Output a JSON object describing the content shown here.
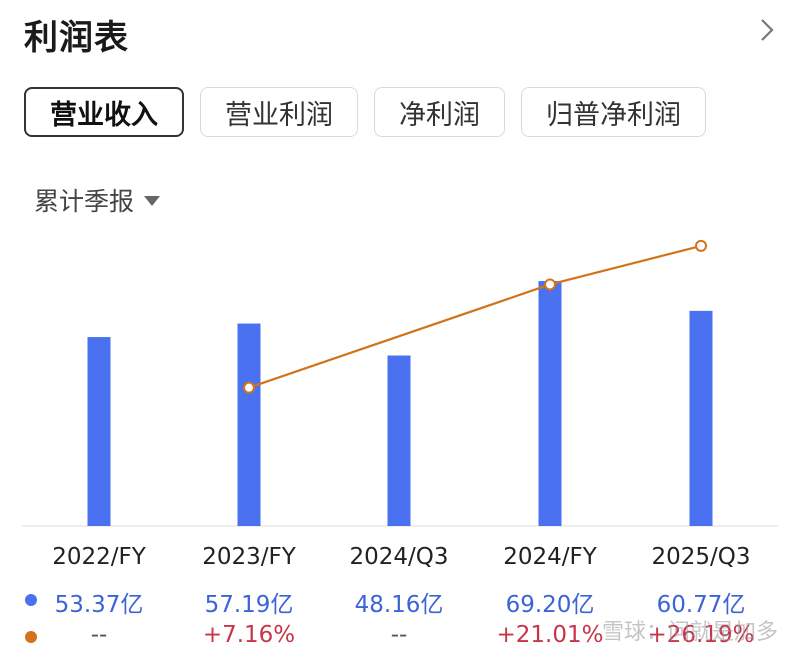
{
  "header": {
    "title": "利润表"
  },
  "tabs": [
    {
      "label": "营业收入",
      "active": true
    },
    {
      "label": "营业利润",
      "active": false
    },
    {
      "label": "净利润",
      "active": false
    },
    {
      "label": "归普净利润",
      "active": false
    }
  ],
  "period": {
    "label": "累计季报"
  },
  "colors": {
    "bar": "#4a72f0",
    "line": "#d2721b",
    "growth_text": "#c8344a",
    "revenue_text": "#3b64d8"
  },
  "chart_data": {
    "type": "bar",
    "categories": [
      "2022/FY",
      "2023/FY",
      "2024/Q3",
      "2024/FY",
      "2025/Q3"
    ],
    "series": [
      {
        "values": [
          53.37,
          57.19,
          48.16,
          69.2,
          60.77
        ],
        "labels": [
          "53.37亿",
          "57.19亿",
          "48.16亿",
          "69.20亿",
          "60.77亿"
        ]
      },
      {
        "values": [
          null,
          7.16,
          null,
          21.01,
          26.19
        ],
        "labels": [
          "--",
          "+7.16%",
          "--",
          "+21.01%",
          "+26.19%"
        ]
      }
    ]
  },
  "watermark": "雪球：问就是加多"
}
